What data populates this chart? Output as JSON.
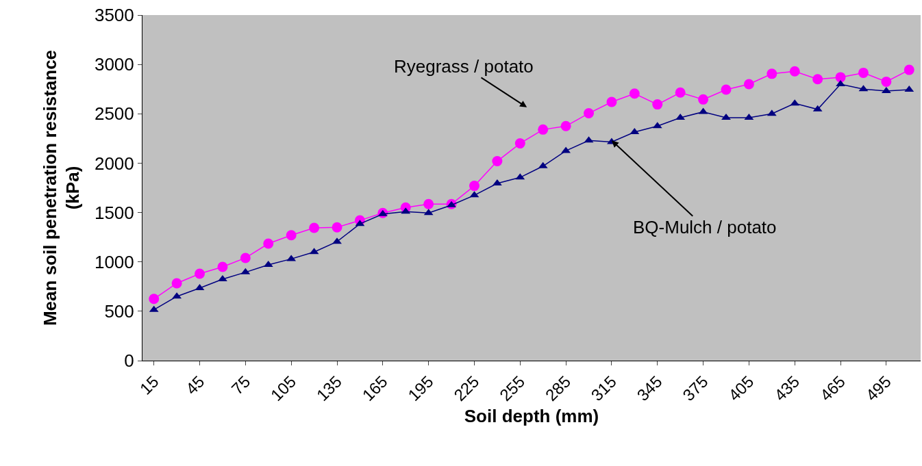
{
  "chart_data": {
    "type": "line",
    "xlabel": "Soil depth (mm)",
    "ylabel": "Mean soil penetration resistance\n(kPa)",
    "categories": [
      "15",
      null,
      "45",
      null,
      "75",
      null,
      "105",
      null,
      "135",
      null,
      "165",
      null,
      "195",
      null,
      "225",
      null,
      "255",
      null,
      "285",
      null,
      "315",
      null,
      "345",
      null,
      "375",
      null,
      "405",
      null,
      "435",
      null,
      "465",
      null,
      "495",
      null
    ],
    "series": [
      {
        "color": "#ff00ff",
        "marker": "circle",
        "values": [
          625,
          783,
          880,
          950,
          1040,
          1185,
          1270,
          1345,
          1350,
          1420,
          1495,
          1550,
          1585,
          1585,
          1770,
          2020,
          2200,
          2340,
          2375,
          2505,
          2620,
          2705,
          2595,
          2715,
          2645,
          2745,
          2800,
          2905,
          2930,
          2850,
          2870,
          2915,
          2825,
          2945
        ]
      },
      {
        "color": "#000080",
        "marker": "triangle",
        "values": [
          515,
          650,
          735,
          825,
          895,
          970,
          1030,
          1100,
          1205,
          1385,
          1485,
          1510,
          1495,
          1575,
          1675,
          1795,
          1855,
          1970,
          2125,
          2230,
          2215,
          2315,
          2375,
          2460,
          2520,
          2460,
          2460,
          2500,
          2605,
          2545,
          2800,
          2750,
          2730,
          2745
        ]
      }
    ],
    "ylim": [
      0,
      3500
    ],
    "yticks": [
      0,
      500,
      1000,
      1500,
      2000,
      2500,
      3000,
      3500
    ],
    "grid": false,
    "annotations": [
      "Ryegrass / potato",
      {
        "text": "BQ-Mulch / potato",
        "x": "315",
        "y": 2230
      }
    ]
  }
}
